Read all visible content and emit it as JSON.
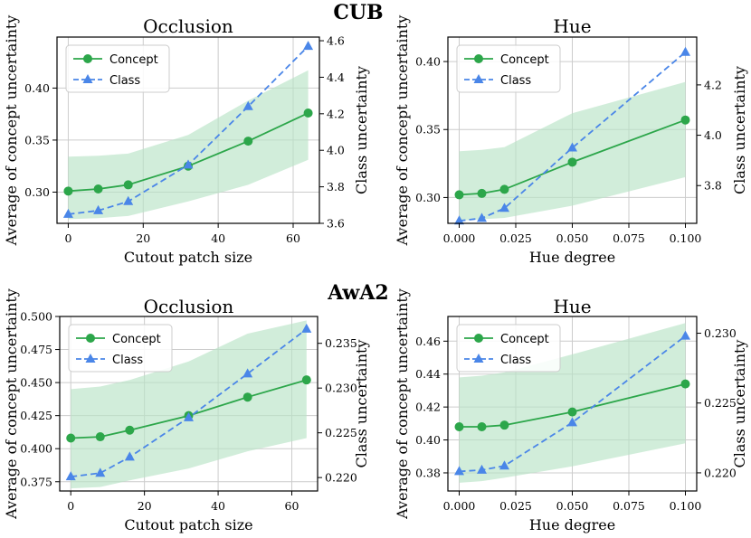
{
  "colors": {
    "concept": "#2ca64a",
    "band": "#b9e3c6",
    "class": "#4a86e8"
  },
  "group_titles": [
    "CUB",
    "AwA2"
  ],
  "legend": {
    "concept": "Concept",
    "class": "Class"
  },
  "chart_data": [
    {
      "type": "line",
      "group": "CUB",
      "title": "Occlusion",
      "xlabel": "Cutout patch size",
      "ylabel": "Average of concept uncertainty",
      "y2label": "Class uncertainty",
      "x": [
        0,
        8,
        16,
        32,
        48,
        64
      ],
      "xlim": [
        -3,
        67
      ],
      "xticks": [
        0,
        20,
        40,
        60
      ],
      "xtick_labels": [
        "0",
        "20",
        "40",
        "60"
      ],
      "ylim": [
        0.27,
        0.449
      ],
      "yticks": [
        0.3,
        0.35,
        0.4
      ],
      "ytick_labels": [
        "0.30",
        "0.35",
        "0.40"
      ],
      "y2lim": [
        3.6,
        4.62
      ],
      "y2ticks": [
        3.6,
        3.8,
        4.0,
        4.2,
        4.4,
        4.6
      ],
      "y2tick_labels": [
        "3.6",
        "3.8",
        "4.0",
        "4.2",
        "4.4",
        "4.6"
      ],
      "series": [
        {
          "name": "Concept",
          "axis": "left",
          "values": [
            0.301,
            0.303,
            0.307,
            0.325,
            0.349,
            0.376
          ],
          "band_upper": [
            0.334,
            0.335,
            0.337,
            0.355,
            0.388,
            0.417
          ],
          "band_lower": [
            0.274,
            0.275,
            0.277,
            0.291,
            0.307,
            0.331
          ]
        },
        {
          "name": "Class",
          "axis": "right",
          "values": [
            3.65,
            3.67,
            3.72,
            3.92,
            4.24,
            4.57
          ]
        }
      ]
    },
    {
      "type": "line",
      "group": "CUB",
      "title": "Hue",
      "xlabel": "Hue degree",
      "ylabel": "Average of concept uncertainty",
      "y2label": "Class uncertainty",
      "x": [
        0.0,
        0.01,
        0.02,
        0.05,
        0.1
      ],
      "xlim": [
        -0.005,
        0.105
      ],
      "xticks": [
        0.0,
        0.025,
        0.05,
        0.075,
        0.1
      ],
      "xtick_labels": [
        "0.000",
        "0.025",
        "0.050",
        "0.075",
        "0.100"
      ],
      "ylim": [
        0.281,
        0.418
      ],
      "yticks": [
        0.3,
        0.35,
        0.4
      ],
      "ytick_labels": [
        "0.30",
        "0.35",
        "0.40"
      ],
      "y2lim": [
        3.65,
        4.39
      ],
      "y2ticks": [
        3.8,
        4.0,
        4.2
      ],
      "y2tick_labels": [
        "3.8",
        "4.0",
        "4.2"
      ],
      "series": [
        {
          "name": "Concept",
          "axis": "left",
          "values": [
            0.302,
            0.303,
            0.306,
            0.326,
            0.357
          ],
          "band_upper": [
            0.334,
            0.335,
            0.337,
            0.362,
            0.385
          ],
          "band_lower": [
            0.283,
            0.284,
            0.285,
            0.294,
            0.315
          ]
        },
        {
          "name": "Class",
          "axis": "right",
          "values": [
            3.66,
            3.67,
            3.71,
            3.95,
            4.33
          ]
        }
      ]
    },
    {
      "type": "line",
      "group": "AwA2",
      "title": "Occlusion",
      "xlabel": "Cutout patch size",
      "ylabel": "Average of concept uncertainty",
      "y2label": "Class uncertainty",
      "x": [
        0,
        8,
        16,
        32,
        48,
        64
      ],
      "xlim": [
        -3,
        67
      ],
      "xticks": [
        0,
        20,
        40,
        60
      ],
      "xtick_labels": [
        "0",
        "20",
        "40",
        "60"
      ],
      "ylim": [
        0.368,
        0.5
      ],
      "yticks": [
        0.375,
        0.4,
        0.425,
        0.45,
        0.475,
        0.5
      ],
      "ytick_labels": [
        "0.375",
        "0.400",
        "0.425",
        "0.450",
        "0.475",
        "0.500"
      ],
      "y2lim": [
        0.2185,
        0.238
      ],
      "y2ticks": [
        0.22,
        0.225,
        0.23,
        0.235
      ],
      "y2tick_labels": [
        "0.220",
        "0.225",
        "0.230",
        "0.235"
      ],
      "series": [
        {
          "name": "Concept",
          "axis": "left",
          "values": [
            0.408,
            0.409,
            0.414,
            0.425,
            0.439,
            0.452
          ],
          "band_upper": [
            0.445,
            0.447,
            0.452,
            0.466,
            0.487,
            0.497
          ],
          "band_lower": [
            0.37,
            0.371,
            0.376,
            0.385,
            0.398,
            0.408
          ]
        },
        {
          "name": "Class",
          "axis": "right",
          "values": [
            0.2201,
            0.2205,
            0.2223,
            0.2267,
            0.2316,
            0.2366
          ]
        }
      ]
    },
    {
      "type": "line",
      "group": "AwA2",
      "title": "Hue",
      "xlabel": "Hue degree",
      "ylabel": "Average of concept uncertainty",
      "y2label": "Class uncertainty",
      "x": [
        0.0,
        0.01,
        0.02,
        0.05,
        0.1
      ],
      "xlim": [
        -0.005,
        0.105
      ],
      "xticks": [
        0.0,
        0.025,
        0.05,
        0.075,
        0.1
      ],
      "xtick_labels": [
        "0.000",
        "0.025",
        "0.050",
        "0.075",
        "0.100"
      ],
      "ylim": [
        0.369,
        0.475
      ],
      "yticks": [
        0.38,
        0.4,
        0.42,
        0.44,
        0.46
      ],
      "ytick_labels": [
        "0.38",
        "0.40",
        "0.42",
        "0.44",
        "0.46"
      ],
      "y2lim": [
        0.2187,
        0.2312
      ],
      "y2ticks": [
        0.22,
        0.225,
        0.23
      ],
      "y2tick_labels": [
        "0.220",
        "0.225",
        "0.230"
      ],
      "series": [
        {
          "name": "Concept",
          "axis": "left",
          "values": [
            0.408,
            0.408,
            0.409,
            0.417,
            0.434
          ],
          "band_upper": [
            0.438,
            0.439,
            0.441,
            0.452,
            0.471
          ],
          "band_lower": [
            0.374,
            0.375,
            0.377,
            0.384,
            0.398
          ]
        },
        {
          "name": "Class",
          "axis": "right",
          "values": [
            0.2201,
            0.2202,
            0.2205,
            0.2236,
            0.2298
          ]
        }
      ]
    }
  ]
}
